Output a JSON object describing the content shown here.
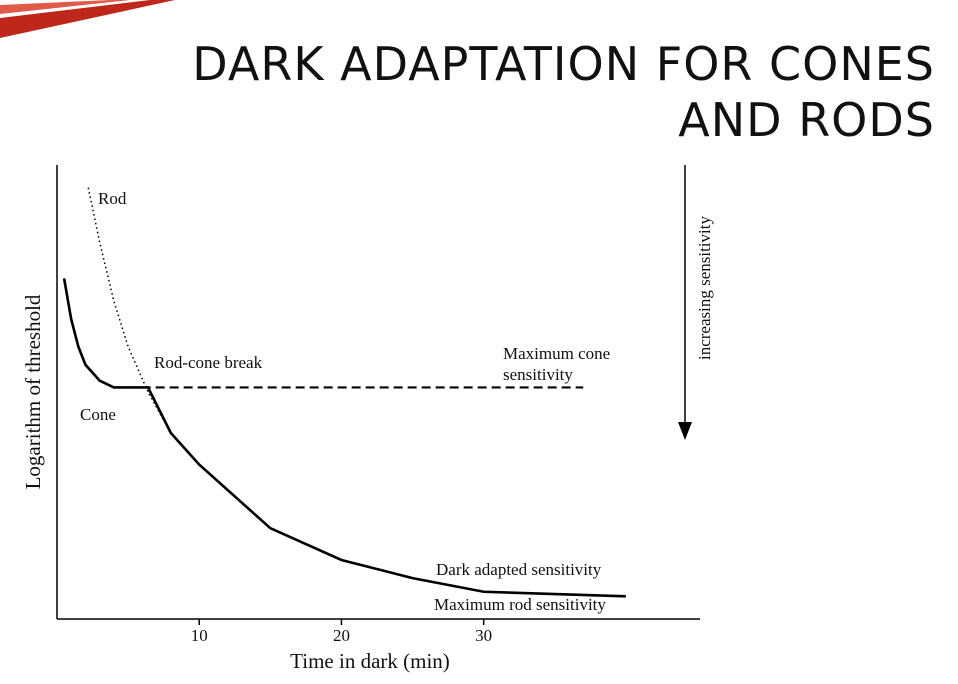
{
  "chart_data": {
    "type": "line",
    "title": [
      "DARK ADAPTATION FOR CONES",
      "AND RODS"
    ],
    "x_label": "Time in dark (min)",
    "y_label": "Logarithm of threshold",
    "side_label": "increasing sensitivity",
    "xlim": [
      0,
      45
    ],
    "xticks": [
      10,
      20,
      30
    ],
    "ylim": [
      0,
      10
    ],
    "series": [
      {
        "name": "Rod",
        "color": "#000000",
        "style": "dotted",
        "x": [
          2.2,
          3,
          4,
          5,
          6.4,
          8,
          10,
          15,
          20,
          25,
          30,
          40
        ],
        "values": [
          9.5,
          8.3,
          7.0,
          6.0,
          5.0,
          4.1,
          3.4,
          2.0,
          1.3,
          0.9,
          0.6,
          0.5
        ]
      },
      {
        "name": "Cone",
        "color": "#000000",
        "style": "dashed",
        "x": [
          0.5,
          1,
          1.5,
          2,
          3,
          4,
          6,
          10,
          20,
          30,
          37
        ],
        "values": [
          7.5,
          6.6,
          6.0,
          5.6,
          5.25,
          5.1,
          5.1,
          5.1,
          5.1,
          5.1,
          5.1
        ]
      },
      {
        "name": "Dark adapted sensitivity",
        "color": "#000000",
        "style": "solid",
        "x": [
          0.5,
          1,
          1.5,
          2,
          3,
          4,
          6.4,
          8,
          10,
          15,
          20,
          25,
          30,
          40
        ],
        "values": [
          7.5,
          6.6,
          6.0,
          5.6,
          5.25,
          5.1,
          5.1,
          4.1,
          3.4,
          2.0,
          1.3,
          0.9,
          0.6,
          0.5
        ]
      }
    ],
    "annotations": [
      "Rod-cone break",
      "Maximum cone",
      "sensitivity",
      "Maximum rod sensitivity"
    ]
  }
}
